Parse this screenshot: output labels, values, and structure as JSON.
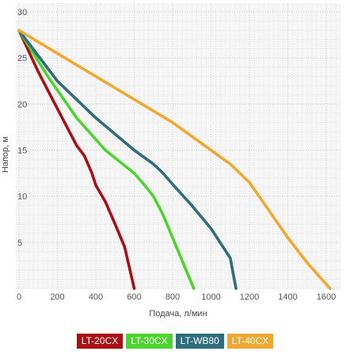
{
  "chart_data": {
    "type": "line",
    "xlabel": "Подача, л/мин",
    "ylabel": "Напор, м",
    "xlim": [
      0,
      1650
    ],
    "ylim": [
      0,
      30
    ],
    "xticks": [
      "0",
      "200",
      "400",
      "600",
      "800",
      "1000",
      "1200",
      "1400",
      "1600"
    ],
    "yticks": [
      "5",
      "10",
      "15",
      "20",
      "25",
      "30"
    ],
    "grid": true,
    "legend_position": "bottom",
    "series": [
      {
        "name": "LT-20CX",
        "color": "#aa0f14",
        "points": [
          [
            0,
            28
          ],
          [
            100,
            23.5
          ],
          [
            200,
            19.5
          ],
          [
            300,
            15.5
          ],
          [
            340,
            14.4
          ],
          [
            380,
            12.5
          ],
          [
            400,
            11.2
          ],
          [
            450,
            9.4
          ],
          [
            500,
            7
          ],
          [
            550,
            4.5
          ],
          [
            600,
            0
          ]
        ]
      },
      {
        "name": "LT-30CX",
        "color": "#4cd52c",
        "points": [
          [
            0,
            28
          ],
          [
            150,
            23
          ],
          [
            300,
            18.5
          ],
          [
            450,
            15
          ],
          [
            600,
            12.5
          ],
          [
            650,
            11.3
          ],
          [
            700,
            10
          ],
          [
            750,
            8
          ],
          [
            800,
            5.5
          ],
          [
            850,
            3
          ],
          [
            910,
            0
          ]
        ]
      },
      {
        "name": "LT-WB80",
        "color": "#2f6c7c",
        "points": [
          [
            0,
            28
          ],
          [
            200,
            22.5
          ],
          [
            400,
            18.5
          ],
          [
            600,
            15
          ],
          [
            700,
            13.5
          ],
          [
            750,
            12.5
          ],
          [
            800,
            11.3
          ],
          [
            900,
            9
          ],
          [
            1000,
            6.5
          ],
          [
            1100,
            3.3
          ],
          [
            1130,
            0
          ]
        ]
      },
      {
        "name": "LT-40CX",
        "color": "#f2a830",
        "points": [
          [
            0,
            28
          ],
          [
            200,
            25.5
          ],
          [
            400,
            23
          ],
          [
            600,
            20.5
          ],
          [
            800,
            18
          ],
          [
            1000,
            15
          ],
          [
            1100,
            13.5
          ],
          [
            1200,
            11.5
          ],
          [
            1300,
            8.5
          ],
          [
            1400,
            5.5
          ],
          [
            1500,
            2.8
          ],
          [
            1620,
            0
          ]
        ]
      }
    ]
  }
}
